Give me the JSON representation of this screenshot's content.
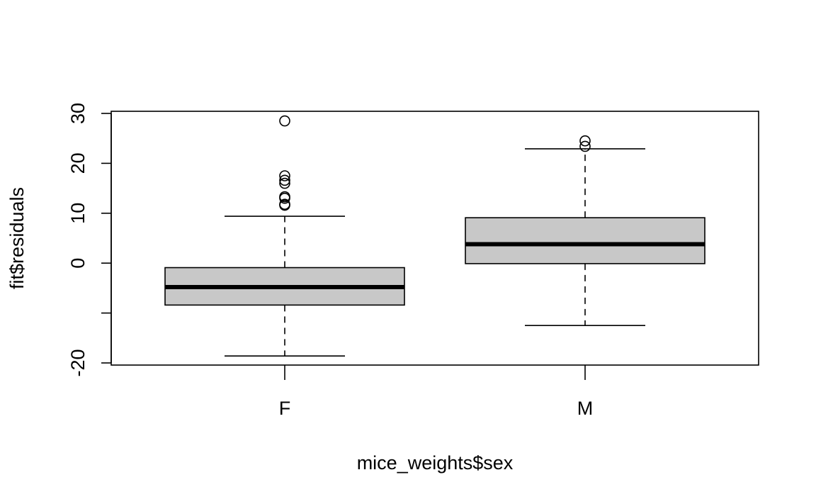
{
  "chart_data": {
    "type": "boxplot",
    "xlabel": "mice_weights$sex",
    "ylabel": "fit$residuals",
    "ylim": [
      -20,
      30
    ],
    "yticks": [
      -20,
      -10,
      0,
      10,
      20,
      30
    ],
    "ytick_labels": [
      "-20",
      "",
      "0",
      "10",
      "20",
      "30"
    ],
    "categories": [
      "F",
      "M"
    ],
    "boxes": [
      {
        "category": "F",
        "whisker_low": -18.6,
        "q1": -8.4,
        "median": -4.8,
        "q3": -0.9,
        "whisker_high": 9.4,
        "outliers": [
          28.5,
          17.5,
          16.6,
          16.0,
          13.3,
          13.0,
          11.8,
          11.6
        ]
      },
      {
        "category": "M",
        "whisker_low": -12.5,
        "q1": -0.1,
        "median": 3.8,
        "q3": 9.1,
        "whisker_high": 22.9,
        "outliers": [
          24.5,
          23.4
        ]
      }
    ],
    "box_fill": "#c8c8c8",
    "grid": false,
    "legend": "none"
  }
}
